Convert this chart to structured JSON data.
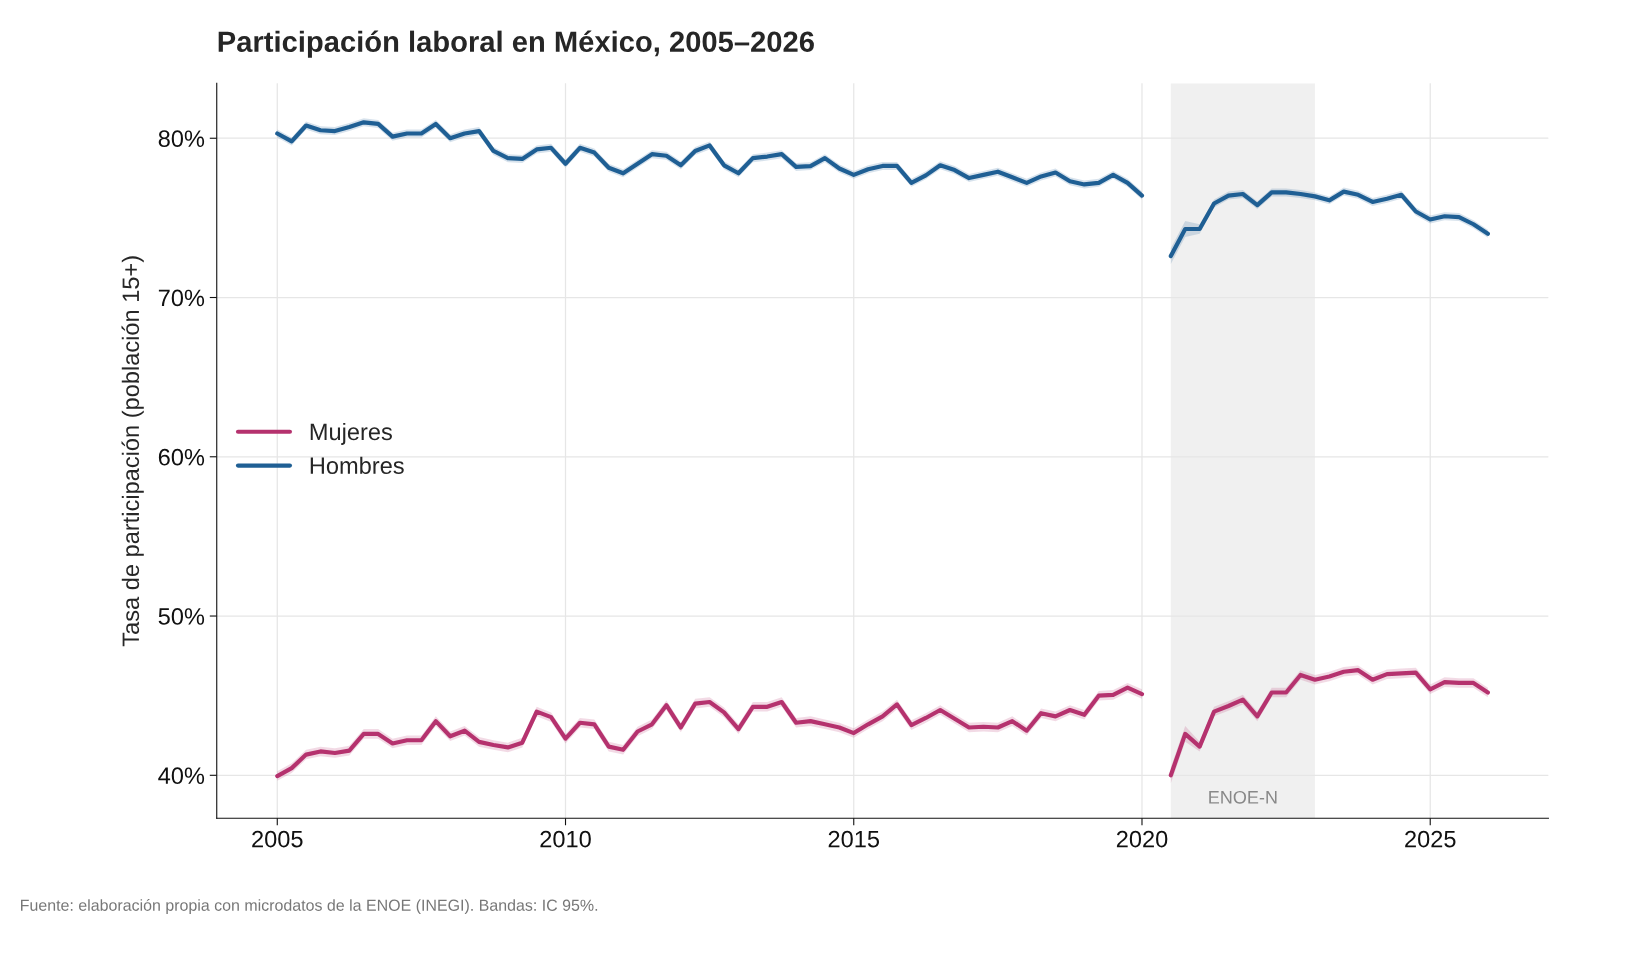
{
  "chart_data": {
    "type": "line",
    "title": "Participación laboral en México, 2005–2026",
    "ylabel": "Tasa de participación (población 15+)",
    "annotations": [
      "Fuente: elaboración propia con microdatos de la ENOE (INEGI). Bandas: IC 95%."
    ],
    "x": [
      2005,
      2005.25,
      2005.5,
      2005.75,
      2006,
      2006.25,
      2006.5,
      2006.75,
      2007,
      2007.25,
      2007.5,
      2007.75,
      2008,
      2008.25,
      2008.5,
      2008.75,
      2009,
      2009.25,
      2009.5,
      2009.75,
      2010,
      2010.25,
      2010.5,
      2010.75,
      2011,
      2011.25,
      2011.5,
      2011.75,
      2012,
      2012.25,
      2012.5,
      2012.75,
      2013,
      2013.25,
      2013.5,
      2013.75,
      2014,
      2014.25,
      2014.5,
      2014.75,
      2015,
      2015.25,
      2015.5,
      2015.75,
      2016,
      2016.25,
      2016.5,
      2016.75,
      2017,
      2017.25,
      2017.5,
      2017.75,
      2018,
      2018.25,
      2018.5,
      2018.75,
      2019,
      2019.25,
      2019.5,
      2019.75,
      2020,
      2020.25,
      2020.5,
      2020.75,
      2021,
      2021.25,
      2021.5,
      2021.75,
      2022,
      2022.25,
      2022.5,
      2022.75,
      2023,
      2023.25,
      2023.5,
      2023.75,
      2024,
      2024.25,
      2024.5,
      2024.75,
      2025,
      2025.25,
      2025.5,
      2025.75,
      2026
    ],
    "series": [
      {
        "name": "Mujeres",
        "color": "#b5326e",
        "values": [
          39.95,
          40.45,
          41.3,
          41.5,
          41.4,
          41.55,
          42.6,
          42.6,
          42.0,
          42.2,
          42.2,
          43.4,
          42.45,
          42.8,
          42.1,
          41.9,
          41.75,
          42.05,
          44.0,
          43.65,
          42.3,
          43.3,
          43.2,
          41.8,
          41.6,
          42.75,
          43.2,
          44.4,
          43.0,
          44.5,
          44.6,
          43.95,
          42.9,
          44.3,
          44.3,
          44.6,
          43.3,
          43.4,
          43.2,
          43.0,
          42.65,
          43.2,
          43.7,
          44.45,
          43.15,
          43.6,
          44.1,
          43.55,
          43.0,
          43.05,
          43.0,
          43.4,
          42.8,
          43.9,
          43.7,
          44.1,
          43.8,
          45.0,
          45.05,
          45.5,
          45.1,
          null,
          40.0,
          42.6,
          41.8,
          44.0,
          44.35,
          44.75,
          43.7,
          45.2,
          45.2,
          46.3,
          46.0,
          46.2,
          46.5,
          46.6,
          46.0,
          46.35,
          46.4,
          46.45,
          45.4,
          45.85,
          45.8,
          45.8,
          45.2
        ],
        "lower": [
          39.65,
          40.15,
          41.0,
          41.2,
          41.1,
          41.25,
          42.3,
          42.3,
          41.7,
          41.9,
          41.9,
          43.1,
          42.15,
          42.5,
          41.8,
          41.6,
          41.45,
          41.75,
          43.7,
          43.35,
          42.0,
          43.0,
          42.9,
          41.5,
          41.3,
          42.45,
          42.9,
          44.1,
          42.7,
          44.2,
          44.3,
          43.65,
          42.6,
          44.0,
          44.0,
          44.3,
          43.0,
          43.1,
          42.9,
          42.7,
          42.35,
          42.9,
          43.4,
          44.15,
          42.85,
          43.3,
          43.8,
          43.25,
          42.7,
          42.75,
          42.7,
          43.1,
          42.5,
          43.6,
          43.4,
          43.8,
          43.5,
          44.7,
          44.75,
          45.2,
          44.8,
          null,
          39.5,
          42.1,
          41.5,
          43.7,
          44.05,
          44.45,
          43.4,
          44.9,
          44.9,
          46.0,
          45.7,
          45.9,
          46.2,
          46.3,
          45.7,
          46.05,
          46.1,
          46.15,
          45.1,
          45.55,
          45.5,
          45.5,
          44.9
        ],
        "upper": [
          40.25,
          40.75,
          41.6,
          41.8,
          41.7,
          41.85,
          42.9,
          42.9,
          42.3,
          42.5,
          42.5,
          43.7,
          42.75,
          43.1,
          42.4,
          42.2,
          42.05,
          42.35,
          44.3,
          43.95,
          42.6,
          43.6,
          43.5,
          42.1,
          41.9,
          43.05,
          43.5,
          44.7,
          43.3,
          44.8,
          44.9,
          44.25,
          43.2,
          44.6,
          44.6,
          44.9,
          43.6,
          43.7,
          43.5,
          43.3,
          42.95,
          43.5,
          44.0,
          44.75,
          43.45,
          43.9,
          44.4,
          43.85,
          43.3,
          43.35,
          43.3,
          43.7,
          43.1,
          44.2,
          44.0,
          44.4,
          44.1,
          45.3,
          45.35,
          45.8,
          45.4,
          null,
          40.5,
          43.1,
          42.1,
          44.3,
          44.65,
          45.05,
          44.0,
          45.5,
          45.5,
          46.6,
          46.3,
          46.5,
          46.8,
          46.9,
          46.3,
          46.65,
          46.7,
          46.75,
          45.7,
          46.15,
          46.1,
          46.1,
          45.5
        ]
      },
      {
        "name": "Hombres",
        "color": "#1f5f94",
        "values": [
          80.3,
          79.8,
          80.8,
          80.5,
          80.45,
          80.7,
          81.0,
          80.9,
          80.1,
          80.3,
          80.3,
          80.9,
          80.0,
          80.3,
          80.45,
          79.2,
          78.75,
          78.7,
          79.3,
          79.4,
          78.4,
          79.4,
          79.1,
          78.15,
          77.8,
          78.4,
          79.0,
          78.9,
          78.3,
          79.2,
          79.55,
          78.3,
          77.8,
          78.75,
          78.85,
          79.0,
          78.2,
          78.25,
          78.75,
          78.1,
          77.7,
          78.05,
          78.26,
          78.26,
          77.2,
          77.67,
          78.3,
          78.0,
          77.5,
          77.7,
          77.9,
          77.55,
          77.2,
          77.6,
          77.85,
          77.3,
          77.1,
          77.2,
          77.7,
          77.2,
          76.4,
          null,
          72.6,
          74.3,
          74.3,
          75.9,
          76.4,
          76.5,
          75.8,
          76.6,
          76.6,
          76.5,
          76.35,
          76.1,
          76.65,
          76.45,
          76.0,
          76.2,
          76.45,
          75.4,
          74.9,
          75.1,
          75.05,
          74.6,
          74.0
        ],
        "lower": [
          80.05,
          79.55,
          80.55,
          80.25,
          80.2,
          80.45,
          80.75,
          80.65,
          79.85,
          80.05,
          80.05,
          80.65,
          79.75,
          80.05,
          80.2,
          78.95,
          78.5,
          78.45,
          79.05,
          79.15,
          78.15,
          79.15,
          78.85,
          77.9,
          77.55,
          78.15,
          78.75,
          78.65,
          78.05,
          78.95,
          79.3,
          78.05,
          77.55,
          78.5,
          78.6,
          78.75,
          77.95,
          78.0,
          78.5,
          77.85,
          77.45,
          77.8,
          78.01,
          78.01,
          76.95,
          77.42,
          78.05,
          77.75,
          77.25,
          77.45,
          77.65,
          77.3,
          76.95,
          77.35,
          77.6,
          77.05,
          76.85,
          76.95,
          77.45,
          76.95,
          76.15,
          null,
          72.1,
          73.8,
          74.0,
          75.65,
          76.15,
          76.25,
          75.55,
          76.35,
          76.35,
          76.25,
          76.1,
          75.85,
          76.4,
          76.2,
          75.75,
          75.95,
          76.2,
          75.15,
          74.65,
          74.85,
          74.8,
          74.35,
          73.75
        ],
        "upper": [
          80.55,
          80.05,
          81.05,
          80.75,
          80.7,
          80.95,
          81.25,
          81.15,
          80.35,
          80.55,
          80.55,
          81.15,
          80.25,
          80.55,
          80.7,
          79.45,
          79.0,
          78.95,
          79.55,
          79.65,
          78.65,
          79.65,
          79.35,
          78.4,
          78.05,
          78.65,
          79.25,
          79.15,
          78.55,
          79.45,
          79.8,
          78.55,
          78.05,
          79.0,
          79.1,
          79.25,
          78.45,
          78.5,
          79.0,
          78.35,
          77.95,
          78.3,
          78.51,
          78.51,
          77.45,
          77.92,
          78.55,
          78.25,
          77.75,
          77.95,
          78.15,
          77.8,
          77.45,
          77.85,
          78.1,
          77.55,
          77.35,
          77.45,
          77.95,
          77.45,
          76.65,
          null,
          73.1,
          74.8,
          74.6,
          76.15,
          76.65,
          76.75,
          76.05,
          76.85,
          76.85,
          76.75,
          76.6,
          76.35,
          76.9,
          76.7,
          76.25,
          76.45,
          76.7,
          75.65,
          75.15,
          75.35,
          75.3,
          74.85,
          74.25
        ]
      }
    ],
    "bands": [
      {
        "axis": "x",
        "from": 2020.5,
        "to": 2023.0,
        "label": "ENOE-N",
        "color": "#f0f0f0"
      }
    ],
    "xlim": [
      2003.95,
      2027.05
    ],
    "xticks": [
      2005,
      2010,
      2015,
      2020,
      2025
    ],
    "ylim": [
      37.3,
      83.45
    ],
    "yticks": [
      {
        "value": 40,
        "label": "40%"
      },
      {
        "value": 50,
        "label": "50%"
      },
      {
        "value": 60,
        "label": "60%"
      },
      {
        "value": 70,
        "label": "70%"
      },
      {
        "value": 80,
        "label": "80%"
      }
    ],
    "grid": true,
    "legend": "center left",
    "marker": "none",
    "line_style": "solid"
  }
}
